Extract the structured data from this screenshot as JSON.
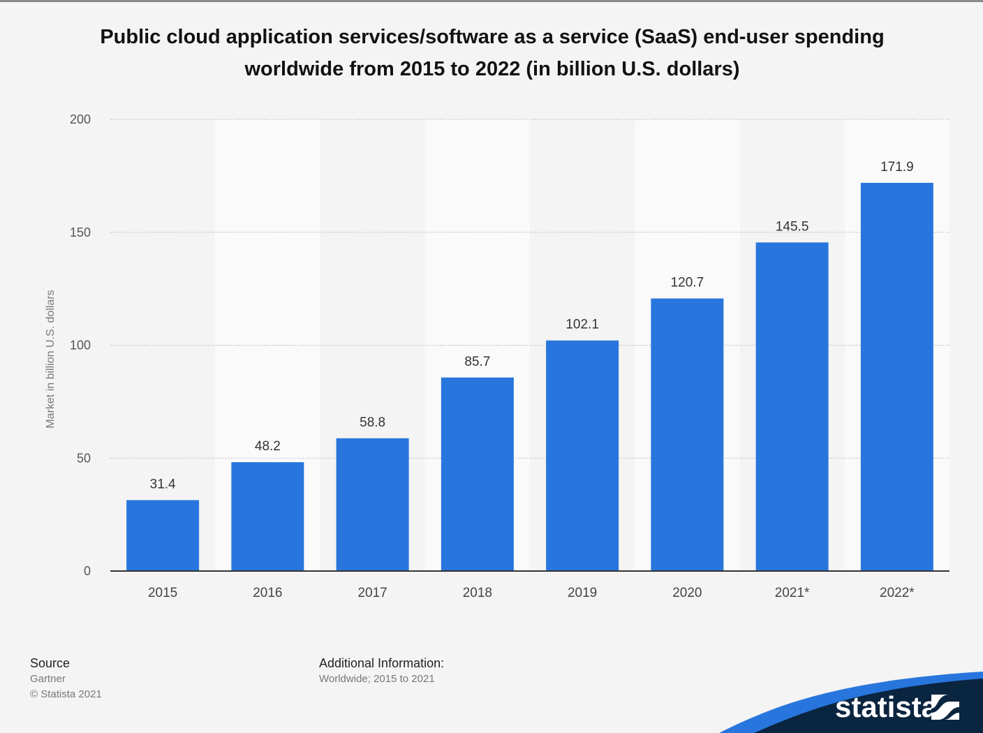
{
  "title": "Public cloud application services/software as a service (SaaS) end-user spending worldwide from 2015 to 2022 (in billion U.S. dollars)",
  "source": {
    "label": "Source",
    "name": "Gartner",
    "copyright": "© Statista 2021"
  },
  "additional_info": {
    "label": "Additional Information:",
    "text": "Worldwide; 2015 to 2021"
  },
  "brand": {
    "name": "statista"
  },
  "colors": {
    "bar": "#2876dd",
    "background": "#f4f4f4",
    "stripe": "#fafafa",
    "brand_dark": "#0a2540",
    "brand_blue": "#2876dd"
  },
  "chart_data": {
    "type": "bar",
    "categories": [
      "2015",
      "2016",
      "2017",
      "2018",
      "2019",
      "2020",
      "2021*",
      "2022*"
    ],
    "values": [
      31.4,
      48.2,
      58.8,
      85.7,
      102.1,
      120.7,
      145.5,
      171.9
    ],
    "value_labels": [
      "31.4",
      "48.2",
      "58.8",
      "85.7",
      "102.1",
      "120.7",
      "145.5",
      "171.9"
    ],
    "ylabel": "Market in billion U.S. dollars",
    "xlabel": "",
    "ylim": [
      0,
      200
    ],
    "yticks": [
      "0",
      "50",
      "100",
      "150",
      "200"
    ],
    "grid": true
  }
}
